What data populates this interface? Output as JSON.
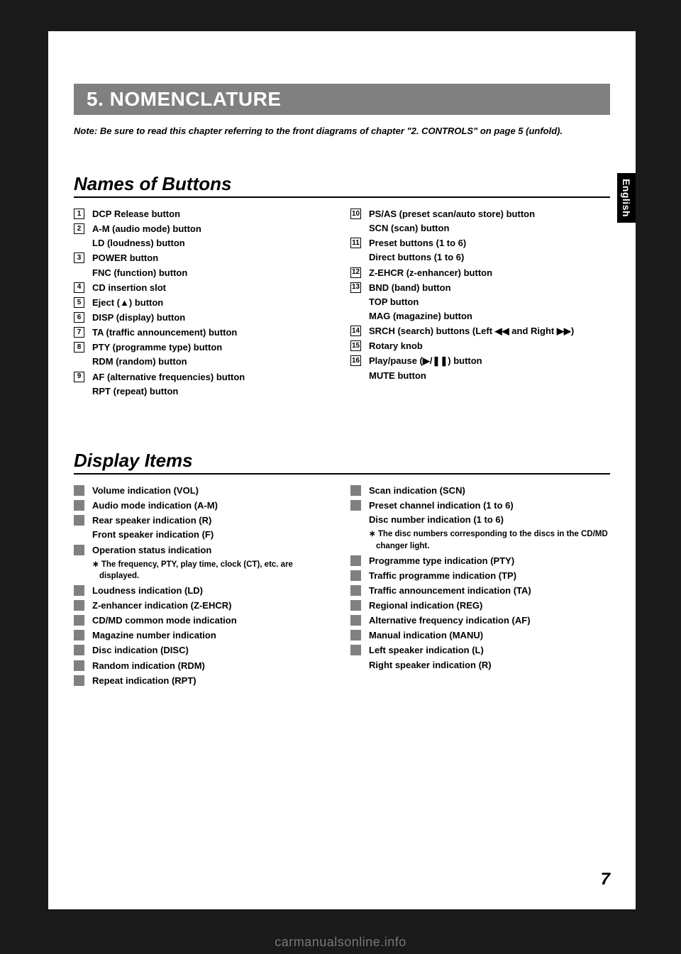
{
  "colors": {
    "page_bg": "#ffffff",
    "outer_bg": "#1a1a1a",
    "bar_bg": "#808080",
    "bar_text": "#ffffff",
    "rule": "#000000",
    "gray_box": "#808080",
    "tab_bg": "#000000",
    "tab_text": "#ffffff"
  },
  "chapter_title": "5. NOMENCLATURE",
  "note": "Note: Be sure to read this chapter referring to the front diagrams of chapter \"2. CONTROLS\" on page 5 (unfold).",
  "side_tab": "English",
  "page_number": "7",
  "watermark": "carmanualsonline.info",
  "section1": {
    "title": "Names of Buttons",
    "left": [
      {
        "num": "1",
        "lines": [
          "DCP Release button"
        ]
      },
      {
        "num": "2",
        "lines": [
          "A-M (audio mode) button",
          "LD (loudness) button"
        ]
      },
      {
        "num": "3",
        "lines": [
          "POWER button",
          "FNC (function) button"
        ]
      },
      {
        "num": "4",
        "lines": [
          "CD insertion slot"
        ]
      },
      {
        "num": "5",
        "lines": [
          "Eject (▲) button"
        ]
      },
      {
        "num": "6",
        "lines": [
          "DISP (display) button"
        ]
      },
      {
        "num": "7",
        "lines": [
          "TA (traffic announcement) button"
        ]
      },
      {
        "num": "8",
        "lines": [
          "PTY (programme type) button",
          "RDM (random) button"
        ]
      },
      {
        "num": "9",
        "lines": [
          "AF (alternative frequencies) button",
          "RPT (repeat) button"
        ]
      }
    ],
    "right": [
      {
        "num": "10",
        "lines": [
          "PS/AS (preset scan/auto store) button",
          "SCN (scan) button"
        ]
      },
      {
        "num": "11",
        "lines": [
          "Preset buttons (1 to 6)",
          "Direct buttons (1 to 6)"
        ]
      },
      {
        "num": "12",
        "lines": [
          "Z-EHCR (z-enhancer) button"
        ]
      },
      {
        "num": "13",
        "lines": [
          "BND (band) button",
          "TOP button",
          "MAG (magazine) button"
        ]
      },
      {
        "num": "14",
        "lines": [
          "SRCH (search) buttons (Left ◀◀ and Right ▶▶)"
        ]
      },
      {
        "num": "15",
        "lines": [
          "Rotary knob"
        ]
      },
      {
        "num": "16",
        "lines": [
          "Play/pause (▶/❚❚) button",
          "MUTE button"
        ]
      }
    ]
  },
  "section2": {
    "title": "Display Items",
    "left": [
      {
        "lines": [
          "Volume indication (VOL)"
        ]
      },
      {
        "lines": [
          "Audio mode indication (A-M)"
        ]
      },
      {
        "lines": [
          "Rear speaker indication (R)",
          "Front speaker indication (F)"
        ]
      },
      {
        "lines": [
          "Operation status indication"
        ],
        "sub": "∗ The frequency, PTY, play time, clock (CT), etc. are displayed."
      },
      {
        "lines": [
          "Loudness indication (LD)"
        ]
      },
      {
        "lines": [
          "Z-enhancer indication (Z-EHCR)"
        ]
      },
      {
        "lines": [
          "CD/MD common mode indication"
        ]
      },
      {
        "lines": [
          "Magazine number indication"
        ]
      },
      {
        "lines": [
          "Disc indication (DISC)"
        ]
      },
      {
        "lines": [
          "Random indication (RDM)"
        ]
      },
      {
        "lines": [
          "Repeat indication (RPT)"
        ]
      }
    ],
    "right": [
      {
        "lines": [
          "Scan indication (SCN)"
        ]
      },
      {
        "lines": [
          "Preset channel indication (1 to 6)",
          "Disc number indication (1 to 6)"
        ],
        "sub": "∗ The disc numbers corresponding to the discs in the CD/MD changer light."
      },
      {
        "lines": [
          "Programme type indication (PTY)"
        ]
      },
      {
        "lines": [
          "Traffic programme indication (TP)"
        ]
      },
      {
        "lines": [
          "Traffic announcement indication (TA)"
        ]
      },
      {
        "lines": [
          "Regional indication (REG)"
        ]
      },
      {
        "lines": [
          "Alternative frequency indication (AF)"
        ]
      },
      {
        "lines": [
          "Manual indication (MANU)"
        ]
      },
      {
        "lines": [
          "Left speaker indication (L)",
          "Right speaker indication (R)"
        ]
      }
    ]
  }
}
